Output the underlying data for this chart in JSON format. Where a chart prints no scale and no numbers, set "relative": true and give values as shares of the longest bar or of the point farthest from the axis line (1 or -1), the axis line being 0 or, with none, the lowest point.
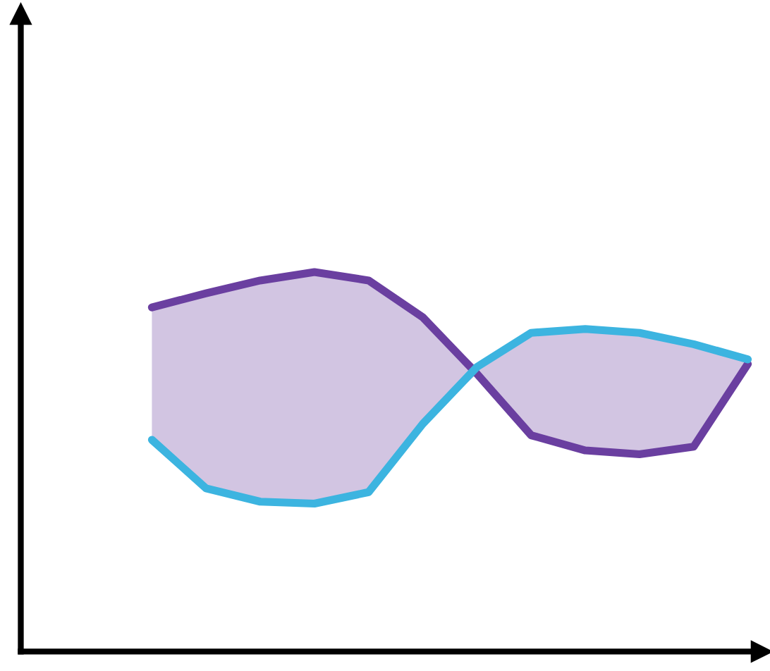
{
  "chart_data": {
    "type": "line",
    "relative": true,
    "marker": "none",
    "line_style": "solid",
    "categories": [
      null,
      null,
      null,
      null,
      null,
      null,
      null,
      null,
      null,
      null,
      null,
      null
    ],
    "series": [
      {
        "color": "#6a3fa0",
        "values": [
          0.907,
          0.944,
          0.978,
          1.0,
          0.978,
          0.881,
          0.732,
          0.57,
          0.53,
          0.52,
          0.54,
          0.758
        ],
        "lower": [
          0.558,
          0.43,
          0.395,
          0.39,
          0.42,
          0.6,
          0.732,
          0.57,
          0.53,
          0.52,
          0.54,
          0.758
        ],
        "upper": [
          0.907,
          0.944,
          0.978,
          1.0,
          0.978,
          0.881,
          0.75,
          0.84,
          0.85,
          0.84,
          0.81,
          0.77
        ]
      },
      {
        "color": "#3cb4e0",
        "values": [
          0.558,
          0.43,
          0.395,
          0.39,
          0.42,
          0.6,
          0.75,
          0.84,
          0.85,
          0.84,
          0.81,
          0.77
        ]
      }
    ]
  }
}
